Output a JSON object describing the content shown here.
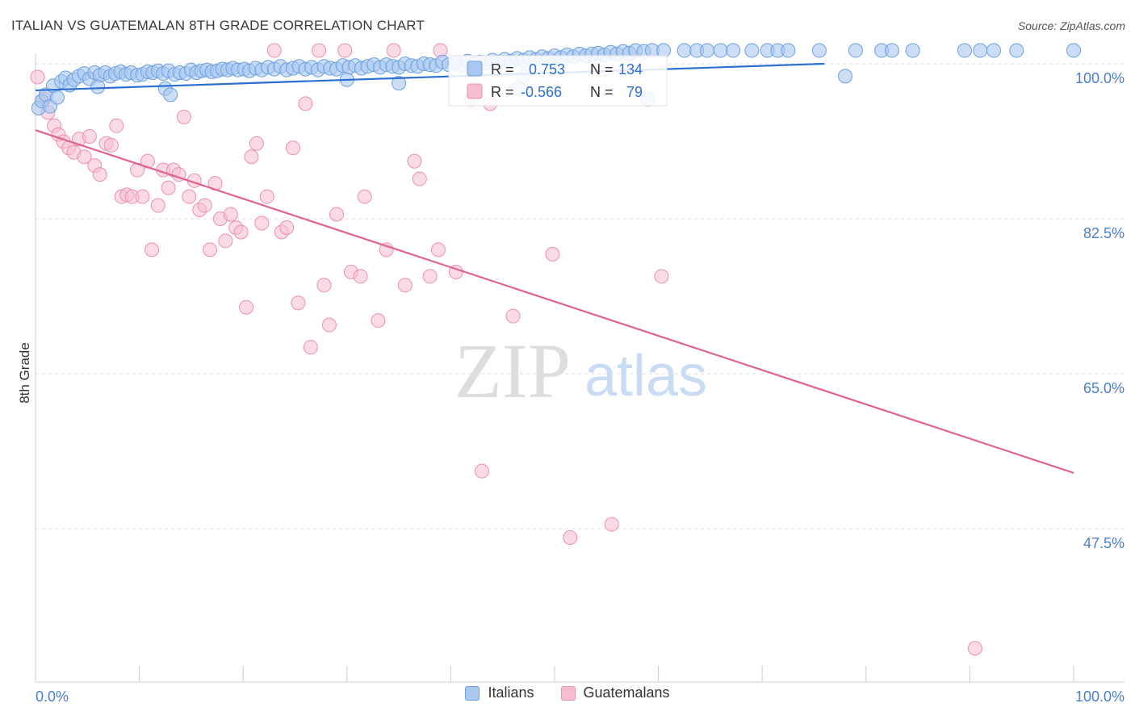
{
  "header": {
    "title": "ITALIAN VS GUATEMALAN 8TH GRADE CORRELATION CHART",
    "source": "Source: ZipAtlas.com"
  },
  "watermark": {
    "zip": "ZIP",
    "atlas": "atlas"
  },
  "colors": {
    "italians_fill": "#a9c8f0",
    "italians_stroke": "#6d9fe0",
    "italians_line": "#2a6fd1",
    "guatemalans_fill": "#f6bdd0",
    "guatemalans_stroke": "#ec8fb0",
    "guatemalans_line": "#e0628f",
    "tick_label": "#4a7fd0"
  },
  "stats_legend": {
    "italians": {
      "r_label": "R =",
      "r_value": "0.753",
      "n_label": "N =",
      "n_value": "134"
    },
    "guatemalans": {
      "r_label": "R =",
      "r_value": "-0.566",
      "n_label": "N =",
      "n_value": "79"
    }
  },
  "legend": {
    "italians": "Italians",
    "guatemalans": "Guatemalans"
  },
  "chart_data": {
    "type": "scatter",
    "title": "ITALIAN VS GUATEMALAN 8TH GRADE CORRELATION CHART",
    "xlabel": "",
    "ylabel": "8th Grade",
    "xlim": [
      0,
      100
    ],
    "ylim": [
      32,
      102.5
    ],
    "x_tick_labels": [
      "0.0%",
      "100.0%"
    ],
    "y_ticks": [
      100,
      82.5,
      65,
      47.5
    ],
    "y_tick_labels": [
      "100.0%",
      "82.5%",
      "65.0%",
      "47.5%"
    ],
    "grid": "horizontal dashed",
    "legend_position": "top-center",
    "series": [
      {
        "name": "Italians",
        "trend": [
          [
            0,
            97.0
          ],
          [
            76,
            100.0
          ]
        ],
        "points": [
          [
            0.3,
            95.0
          ],
          [
            0.6,
            95.8
          ],
          [
            1.0,
            96.5
          ],
          [
            1.4,
            95.2
          ],
          [
            1.7,
            97.5
          ],
          [
            2.1,
            96.2
          ],
          [
            2.5,
            98.0
          ],
          [
            2.9,
            98.4
          ],
          [
            3.3,
            97.6
          ],
          [
            3.7,
            98.2
          ],
          [
            4.2,
            98.6
          ],
          [
            4.7,
            98.9
          ],
          [
            5.2,
            98.3
          ],
          [
            5.7,
            99.0
          ],
          [
            6.2,
            98.7
          ],
          [
            6.7,
            99.0
          ],
          [
            7.2,
            98.6
          ],
          [
            7.7,
            98.9
          ],
          [
            8.2,
            99.1
          ],
          [
            8.7,
            98.8
          ],
          [
            9.2,
            99.0
          ],
          [
            9.8,
            98.7
          ],
          [
            10.3,
            98.8
          ],
          [
            10.8,
            99.1
          ],
          [
            11.3,
            99.0
          ],
          [
            11.8,
            99.2
          ],
          [
            12.3,
            98.9
          ],
          [
            12.8,
            99.2
          ],
          [
            13.4,
            98.8
          ],
          [
            13.9,
            99.0
          ],
          [
            14.5,
            98.9
          ],
          [
            15.0,
            99.3
          ],
          [
            15.5,
            99.0
          ],
          [
            16.0,
            99.2
          ],
          [
            16.5,
            99.3
          ],
          [
            17.0,
            99.1
          ],
          [
            17.5,
            99.2
          ],
          [
            18.0,
            99.4
          ],
          [
            18.5,
            99.3
          ],
          [
            19.0,
            99.5
          ],
          [
            19.5,
            99.3
          ],
          [
            20.1,
            99.4
          ],
          [
            20.6,
            99.2
          ],
          [
            21.2,
            99.5
          ],
          [
            21.8,
            99.3
          ],
          [
            22.4,
            99.6
          ],
          [
            23.0,
            99.4
          ],
          [
            23.6,
            99.7
          ],
          [
            24.2,
            99.3
          ],
          [
            24.8,
            99.5
          ],
          [
            25.4,
            99.7
          ],
          [
            26.0,
            99.4
          ],
          [
            26.6,
            99.6
          ],
          [
            27.2,
            99.3
          ],
          [
            27.8,
            99.7
          ],
          [
            28.4,
            99.5
          ],
          [
            29.0,
            99.4
          ],
          [
            29.6,
            99.8
          ],
          [
            30.2,
            99.6
          ],
          [
            30.8,
            99.8
          ],
          [
            31.4,
            99.5
          ],
          [
            32.0,
            99.7
          ],
          [
            32.6,
            99.9
          ],
          [
            33.2,
            99.6
          ],
          [
            33.8,
            99.9
          ],
          [
            34.4,
            99.7
          ],
          [
            35.0,
            99.6
          ],
          [
            35.6,
            100.0
          ],
          [
            36.2,
            99.8
          ],
          [
            36.8,
            99.7
          ],
          [
            37.4,
            100.0
          ],
          [
            38.0,
            99.9
          ],
          [
            38.6,
            99.8
          ],
          [
            39.2,
            100.2
          ],
          [
            39.8,
            99.9
          ],
          [
            40.4,
            100.1
          ],
          [
            41.0,
            99.8
          ],
          [
            41.6,
            100.3
          ],
          [
            42.2,
            100.0
          ],
          [
            42.8,
            100.2
          ],
          [
            43.4,
            100.1
          ],
          [
            44.0,
            100.4
          ],
          [
            44.6,
            100.2
          ],
          [
            45.2,
            100.5
          ],
          [
            45.8,
            100.3
          ],
          [
            46.4,
            100.6
          ],
          [
            47.0,
            100.4
          ],
          [
            47.6,
            100.7
          ],
          [
            48.2,
            100.5
          ],
          [
            48.8,
            100.8
          ],
          [
            49.4,
            100.6
          ],
          [
            50.0,
            100.9
          ],
          [
            50.6,
            100.7
          ],
          [
            51.2,
            101.0
          ],
          [
            51.8,
            100.8
          ],
          [
            52.4,
            101.1
          ],
          [
            53.0,
            100.9
          ],
          [
            53.6,
            101.1
          ],
          [
            54.2,
            101.2
          ],
          [
            54.8,
            101.0
          ],
          [
            55.4,
            101.3
          ],
          [
            56.0,
            101.1
          ],
          [
            56.6,
            101.4
          ],
          [
            57.2,
            101.2
          ],
          [
            57.8,
            101.5
          ],
          [
            58.6,
            101.4
          ],
          [
            59.4,
            101.5
          ],
          [
            60.5,
            101.5
          ],
          [
            62.5,
            101.5
          ],
          [
            63.7,
            101.5
          ],
          [
            64.7,
            101.5
          ],
          [
            66.0,
            101.5
          ],
          [
            67.2,
            101.5
          ],
          [
            69.0,
            101.5
          ],
          [
            70.5,
            101.5
          ],
          [
            71.5,
            101.5
          ],
          [
            72.5,
            101.5
          ],
          [
            75.5,
            101.5
          ],
          [
            79.0,
            101.5
          ],
          [
            81.5,
            101.5
          ],
          [
            82.5,
            101.5
          ],
          [
            84.5,
            101.5
          ],
          [
            89.5,
            101.5
          ],
          [
            91.0,
            101.5
          ],
          [
            92.3,
            101.5
          ],
          [
            94.5,
            101.5
          ],
          [
            100.0,
            101.5
          ],
          [
            78.0,
            98.6
          ],
          [
            12.5,
            97.2
          ],
          [
            13.0,
            96.5
          ],
          [
            6.0,
            97.4
          ],
          [
            35.0,
            97.8
          ],
          [
            46.5,
            97.2
          ],
          [
            59.0,
            96.0
          ],
          [
            30.0,
            98.2
          ],
          [
            47.0,
            98.6
          ]
        ]
      },
      {
        "name": "Guatemalans",
        "trend": [
          [
            0,
            92.5
          ],
          [
            100,
            53.8
          ]
        ],
        "points": [
          [
            0.2,
            98.5
          ],
          [
            0.8,
            96.0
          ],
          [
            1.2,
            94.5
          ],
          [
            1.8,
            93.0
          ],
          [
            2.2,
            92.0
          ],
          [
            2.7,
            91.2
          ],
          [
            3.2,
            90.5
          ],
          [
            3.7,
            90.0
          ],
          [
            4.2,
            91.5
          ],
          [
            4.7,
            89.5
          ],
          [
            5.2,
            91.8
          ],
          [
            5.7,
            88.5
          ],
          [
            6.2,
            87.5
          ],
          [
            6.8,
            91.0
          ],
          [
            7.3,
            90.8
          ],
          [
            7.8,
            93.0
          ],
          [
            8.3,
            85.0
          ],
          [
            8.8,
            85.2
          ],
          [
            9.3,
            85.0
          ],
          [
            9.8,
            88.0
          ],
          [
            10.3,
            85.0
          ],
          [
            10.8,
            89.0
          ],
          [
            11.2,
            79.0
          ],
          [
            11.8,
            84.0
          ],
          [
            12.3,
            88.0
          ],
          [
            12.8,
            86.0
          ],
          [
            13.3,
            88.0
          ],
          [
            13.8,
            87.5
          ],
          [
            14.3,
            94.0
          ],
          [
            14.8,
            85.0
          ],
          [
            15.3,
            86.8
          ],
          [
            15.8,
            83.5
          ],
          [
            16.3,
            84.0
          ],
          [
            16.8,
            79.0
          ],
          [
            17.3,
            86.5
          ],
          [
            17.8,
            82.5
          ],
          [
            18.3,
            80.0
          ],
          [
            18.8,
            83.0
          ],
          [
            19.3,
            81.5
          ],
          [
            19.8,
            81.0
          ],
          [
            20.3,
            72.5
          ],
          [
            20.8,
            89.5
          ],
          [
            21.3,
            91.0
          ],
          [
            21.8,
            82.0
          ],
          [
            22.3,
            85.0
          ],
          [
            23.0,
            101.5
          ],
          [
            23.7,
            81.0
          ],
          [
            24.2,
            81.5
          ],
          [
            24.8,
            90.5
          ],
          [
            25.3,
            73.0
          ],
          [
            26.0,
            95.5
          ],
          [
            26.5,
            68.0
          ],
          [
            27.3,
            101.5
          ],
          [
            27.8,
            75.0
          ],
          [
            28.3,
            70.5
          ],
          [
            29.0,
            83.0
          ],
          [
            29.8,
            101.5
          ],
          [
            30.4,
            76.5
          ],
          [
            31.3,
            76.0
          ],
          [
            31.7,
            85.0
          ],
          [
            33.0,
            71.0
          ],
          [
            33.8,
            79.0
          ],
          [
            34.5,
            101.5
          ],
          [
            35.6,
            75.0
          ],
          [
            36.5,
            89.0
          ],
          [
            37.0,
            87.0
          ],
          [
            38.0,
            76.0
          ],
          [
            38.8,
            79.0
          ],
          [
            39.0,
            101.5
          ],
          [
            40.5,
            76.5
          ],
          [
            42.0,
            96.0
          ],
          [
            43.0,
            54.0
          ],
          [
            43.8,
            95.5
          ],
          [
            46.0,
            71.5
          ],
          [
            49.8,
            78.5
          ],
          [
            51.5,
            46.5
          ],
          [
            55.5,
            48.0
          ],
          [
            60.3,
            76.0
          ],
          [
            90.5,
            34.0
          ]
        ]
      }
    ]
  }
}
